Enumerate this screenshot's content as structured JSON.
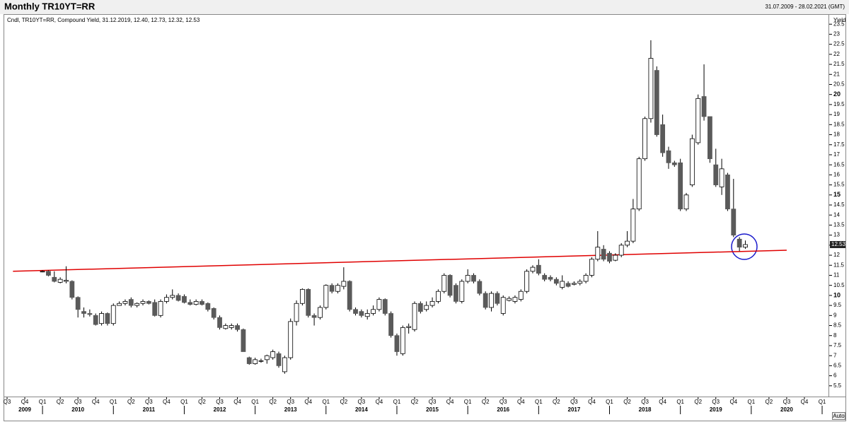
{
  "chart_data": {
    "type": "candlestick",
    "title": "Monthly TR10YT=RR",
    "date_range": "31.07.2009 - 28.02.2021 (GMT)",
    "legend_text": "Cndl, TR10YT=RR, Compound Yield, 31.12.2019, 12.40, 12.73, 12.32, 12.53",
    "y_axis_label": "Yield",
    "button": "Auto",
    "up_color": "#ffffff",
    "down_color": "#5a5a5a",
    "edge_color": "#000000",
    "grid": false,
    "x": [
      "2010-01",
      "2010-02",
      "2010-03",
      "2010-04",
      "2010-05",
      "2010-06",
      "2010-07",
      "2010-08",
      "2010-09",
      "2010-10",
      "2010-11",
      "2010-12",
      "2011-01",
      "2011-02",
      "2011-03",
      "2011-04",
      "2011-05",
      "2011-06",
      "2011-07",
      "2011-08",
      "2011-09",
      "2011-10",
      "2011-11",
      "2011-12",
      "2012-01",
      "2012-02",
      "2012-03",
      "2012-04",
      "2012-05",
      "2012-06",
      "2012-07",
      "2012-08",
      "2012-09",
      "2012-10",
      "2012-11",
      "2012-12",
      "2013-01",
      "2013-02",
      "2013-03",
      "2013-04",
      "2013-05",
      "2013-06",
      "2013-07",
      "2013-08",
      "2013-09",
      "2013-10",
      "2013-11",
      "2013-12",
      "2014-01",
      "2014-02",
      "2014-03",
      "2014-04",
      "2014-05",
      "2014-06",
      "2014-07",
      "2014-08",
      "2014-09",
      "2014-10",
      "2014-11",
      "2014-12",
      "2015-01",
      "2015-02",
      "2015-03",
      "2015-04",
      "2015-05",
      "2015-06",
      "2015-07",
      "2015-08",
      "2015-09",
      "2015-10",
      "2015-11",
      "2015-12",
      "2016-01",
      "2016-02",
      "2016-03",
      "2016-04",
      "2016-05",
      "2016-06",
      "2016-07",
      "2016-08",
      "2016-09",
      "2016-10",
      "2016-11",
      "2016-12",
      "2017-01",
      "2017-02",
      "2017-03",
      "2017-04",
      "2017-05",
      "2017-06",
      "2017-07",
      "2017-08",
      "2017-09",
      "2017-10",
      "2017-11",
      "2017-12",
      "2018-01",
      "2018-02",
      "2018-03",
      "2018-04",
      "2018-05",
      "2018-06",
      "2018-07",
      "2018-08",
      "2018-09",
      "2018-10",
      "2018-11",
      "2018-12",
      "2019-01",
      "2019-02",
      "2019-03",
      "2019-04",
      "2019-05",
      "2019-06",
      "2019-07",
      "2019-08",
      "2019-09",
      "2019-10",
      "2019-11",
      "2019-12"
    ],
    "open": [
      11.2,
      11.2,
      10.9,
      10.65,
      10.7,
      10.7,
      9.9,
      9.2,
      9.1,
      9.0,
      8.6,
      9.1,
      8.6,
      9.5,
      9.6,
      9.8,
      9.5,
      9.6,
      9.7,
      9.65,
      9.0,
      9.7,
      9.9,
      10.0,
      9.95,
      9.65,
      9.55,
      9.7,
      9.6,
      9.35,
      8.9,
      8.35,
      8.4,
      8.5,
      8.3,
      6.9,
      6.6,
      6.75,
      6.8,
      6.9,
      7.1,
      6.2,
      6.9,
      8.7,
      9.6,
      10.3,
      9.0,
      8.9,
      9.4,
      10.5,
      10.2,
      10.45,
      10.7,
      9.3,
      9.2,
      8.95,
      9.1,
      9.3,
      9.8,
      9.1,
      8.0,
      7.1,
      8.4,
      8.3,
      9.6,
      9.3,
      9.5,
      9.7,
      10.2,
      11.0,
      10.5,
      9.7,
      10.7,
      11.0,
      10.7,
      10.1,
      9.4,
      10.1,
      9.1,
      9.75,
      9.7,
      9.8,
      10.2,
      11.2,
      11.5,
      11.0,
      10.9,
      10.8,
      10.4,
      10.6,
      10.55,
      10.6,
      10.7,
      11.0,
      11.8,
      12.3,
      12.1,
      11.75,
      12.0,
      12.5,
      12.7,
      14.3,
      16.8,
      18.8,
      21.2,
      18.5,
      17.2,
      16.6,
      16.6,
      14.3,
      15.5,
      17.6,
      19.9,
      18.9,
      16.5,
      15.4,
      16.0,
      14.3,
      12.8,
      12.4
    ],
    "high": [
      11.25,
      11.25,
      11.2,
      10.9,
      11.45,
      10.75,
      9.95,
      9.4,
      9.3,
      9.1,
      9.2,
      9.15,
      9.6,
      9.7,
      9.8,
      9.9,
      9.65,
      9.8,
      9.75,
      9.8,
      9.8,
      10.05,
      10.3,
      10.1,
      10.05,
      9.8,
      9.8,
      9.8,
      9.65,
      9.4,
      9.0,
      8.6,
      8.6,
      8.6,
      8.35,
      6.95,
      6.9,
      6.85,
      7.05,
      7.3,
      7.2,
      7.0,
      8.85,
      9.75,
      10.35,
      10.35,
      9.1,
      9.5,
      10.55,
      10.6,
      10.6,
      11.4,
      10.75,
      9.4,
      9.3,
      9.3,
      9.5,
      9.9,
      9.85,
      9.2,
      8.1,
      8.5,
      8.6,
      9.7,
      9.7,
      9.7,
      9.9,
      10.3,
      11.1,
      11.05,
      10.6,
      10.8,
      11.3,
      11.1,
      10.8,
      10.2,
      10.2,
      10.2,
      10.0,
      9.95,
      10.0,
      10.3,
      11.3,
      11.5,
      11.8,
      11.1,
      11.0,
      10.9,
      11.0,
      10.7,
      10.7,
      10.8,
      11.1,
      11.9,
      13.2,
      12.5,
      12.2,
      12.1,
      12.6,
      13.2,
      14.8,
      16.9,
      18.9,
      22.7,
      21.4,
      19.0,
      17.4,
      16.7,
      16.8,
      15.1,
      18.0,
      20.0,
      21.5,
      18.9,
      17.3,
      16.8,
      16.1,
      15.8,
      12.9,
      12.73
    ],
    "low": [
      11.15,
      10.95,
      10.65,
      10.6,
      10.6,
      9.8,
      8.9,
      8.9,
      8.95,
      8.5,
      8.5,
      8.5,
      8.5,
      9.5,
      9.5,
      9.4,
      9.4,
      9.5,
      9.55,
      8.95,
      8.9,
      9.6,
      9.8,
      9.7,
      9.6,
      9.5,
      9.5,
      9.5,
      9.2,
      8.8,
      8.3,
      8.3,
      8.3,
      8.2,
      7.2,
      6.55,
      6.55,
      6.65,
      6.6,
      6.8,
      6.4,
      6.1,
      6.8,
      8.5,
      9.5,
      8.9,
      8.5,
      8.8,
      9.3,
      10.1,
      10.1,
      10.3,
      9.2,
      9.0,
      8.9,
      8.8,
      9.0,
      9.2,
      9.0,
      7.9,
      7.0,
      7.0,
      8.1,
      8.2,
      9.1,
      9.2,
      9.4,
      9.6,
      10.1,
      9.9,
      9.6,
      9.6,
      10.6,
      10.6,
      10.0,
      9.3,
      9.2,
      9.5,
      9.0,
      9.7,
      9.6,
      9.7,
      10.1,
      11.1,
      11.0,
      10.7,
      10.7,
      10.5,
      10.3,
      10.4,
      10.5,
      10.5,
      10.6,
      10.9,
      11.7,
      11.7,
      11.6,
      11.7,
      11.9,
      12.4,
      12.6,
      14.2,
      16.7,
      18.6,
      17.9,
      16.9,
      16.3,
      16.4,
      14.2,
      14.2,
      15.4,
      17.5,
      18.7,
      16.6,
      15.4,
      15.0,
      14.2,
      12.9,
      12.2,
      12.32
    ],
    "close": [
      11.2,
      11.0,
      10.7,
      10.8,
      10.75,
      9.9,
      9.3,
      9.1,
      9.05,
      8.55,
      9.1,
      8.6,
      9.5,
      9.6,
      9.7,
      9.5,
      9.6,
      9.7,
      9.6,
      9.0,
      9.7,
      9.9,
      10.0,
      9.75,
      9.65,
      9.55,
      9.7,
      9.55,
      9.3,
      8.9,
      8.4,
      8.5,
      8.5,
      8.3,
      7.2,
      6.6,
      6.8,
      6.75,
      7.0,
      7.2,
      6.5,
      6.9,
      8.7,
      9.6,
      10.3,
      9.0,
      8.9,
      9.4,
      10.5,
      10.2,
      10.5,
      10.7,
      9.3,
      9.1,
      9.0,
      9.1,
      9.3,
      9.8,
      9.1,
      8.0,
      7.2,
      8.4,
      8.45,
      9.6,
      9.2,
      9.5,
      9.7,
      10.2,
      11.0,
      10.0,
      9.7,
      10.7,
      11.0,
      10.7,
      10.1,
      9.4,
      10.1,
      9.6,
      9.9,
      9.85,
      9.9,
      10.2,
      11.2,
      11.4,
      11.1,
      10.8,
      10.8,
      10.6,
      10.7,
      10.45,
      10.6,
      10.7,
      11.0,
      11.8,
      12.4,
      11.8,
      11.7,
      12.0,
      12.5,
      12.7,
      14.3,
      16.8,
      18.8,
      21.8,
      18.0,
      17.1,
      16.6,
      16.5,
      14.3,
      15.0,
      17.8,
      19.8,
      18.9,
      16.8,
      15.5,
      16.3,
      14.3,
      13.0,
      12.4,
      12.53
    ],
    "last_price_index": 119,
    "xlim": [
      "2009-07",
      "2021-02"
    ],
    "xticks": [
      {
        "value": "2009-07",
        "label": "Q3"
      },
      {
        "value": "2009-10",
        "label": "Q4"
      },
      {
        "value": "2010-01",
        "label": "Q1"
      },
      {
        "value": "2010-04",
        "label": "Q2"
      },
      {
        "value": "2010-07",
        "label": "Q3"
      },
      {
        "value": "2010-10",
        "label": "Q4"
      },
      {
        "value": "2011-01",
        "label": "Q1"
      },
      {
        "value": "2011-04",
        "label": "Q2"
      },
      {
        "value": "2011-07",
        "label": "Q3"
      },
      {
        "value": "2011-10",
        "label": "Q4"
      },
      {
        "value": "2012-01",
        "label": "Q1"
      },
      {
        "value": "2012-04",
        "label": "Q2"
      },
      {
        "value": "2012-07",
        "label": "Q3"
      },
      {
        "value": "2012-10",
        "label": "Q4"
      },
      {
        "value": "2013-01",
        "label": "Q1"
      },
      {
        "value": "2013-04",
        "label": "Q2"
      },
      {
        "value": "2013-07",
        "label": "Q3"
      },
      {
        "value": "2013-10",
        "label": "Q4"
      },
      {
        "value": "2014-01",
        "label": "Q1"
      },
      {
        "value": "2014-04",
        "label": "Q2"
      },
      {
        "value": "2014-07",
        "label": "Q3"
      },
      {
        "value": "2014-10",
        "label": "Q4"
      },
      {
        "value": "2015-01",
        "label": "Q1"
      },
      {
        "value": "2015-04",
        "label": "Q2"
      },
      {
        "value": "2015-07",
        "label": "Q3"
      },
      {
        "value": "2015-10",
        "label": "Q4"
      },
      {
        "value": "2016-01",
        "label": "Q1"
      },
      {
        "value": "2016-04",
        "label": "Q2"
      },
      {
        "value": "2016-07",
        "label": "Q3"
      },
      {
        "value": "2016-10",
        "label": "Q4"
      },
      {
        "value": "2017-01",
        "label": "Q1"
      },
      {
        "value": "2017-04",
        "label": "Q2"
      },
      {
        "value": "2017-07",
        "label": "Q3"
      },
      {
        "value": "2017-10",
        "label": "Q4"
      },
      {
        "value": "2018-01",
        "label": "Q1"
      },
      {
        "value": "2018-04",
        "label": "Q2"
      },
      {
        "value": "2018-07",
        "label": "Q3"
      },
      {
        "value": "2018-10",
        "label": "Q4"
      },
      {
        "value": "2019-01",
        "label": "Q1"
      },
      {
        "value": "2019-04",
        "label": "Q2"
      },
      {
        "value": "2019-07",
        "label": "Q3"
      },
      {
        "value": "2019-10",
        "label": "Q4"
      },
      {
        "value": "2020-01",
        "label": "Q1"
      },
      {
        "value": "2020-04",
        "label": "Q2"
      },
      {
        "value": "2020-07",
        "label": "Q3"
      },
      {
        "value": "2020-10",
        "label": "Q4"
      },
      {
        "value": "2021-01",
        "label": "Q1"
      }
    ],
    "years": [
      2009,
      2010,
      2011,
      2012,
      2013,
      2014,
      2015,
      2016,
      2017,
      2018,
      2019,
      2020
    ],
    "ylim": [
      5,
      24
    ],
    "yticks": [
      5.5,
      6,
      6.5,
      7,
      7.5,
      8,
      8.5,
      9,
      9.5,
      10,
      10.5,
      11,
      11.5,
      12,
      12.5,
      13,
      13.5,
      14,
      14.5,
      15,
      15.5,
      16,
      16.5,
      17,
      17.5,
      18,
      18.5,
      19,
      19.5,
      20,
      20.5,
      21,
      21.5,
      22,
      22.5,
      23,
      23.5
    ],
    "trendline": {
      "x": [
        "2009-08",
        "2020-07"
      ],
      "y": [
        11.2,
        12.25
      ],
      "color": "#e00000"
    }
  }
}
